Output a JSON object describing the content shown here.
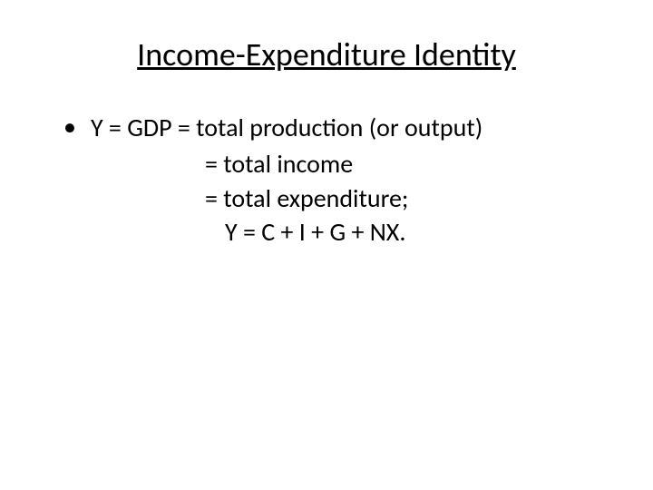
{
  "title": "Income-Expenditure Identity",
  "bullet_char": "•",
  "lines": {
    "l1": "Y = GDP = total production (or output)",
    "l2": "= total income",
    "l3": "= total expenditure;",
    "l4": "Y = C + I + G + NX."
  },
  "colors": {
    "background": "#ffffff",
    "text": "#000000"
  },
  "typography": {
    "title_fontsize": 36,
    "body_fontsize": 28,
    "font_family": "Calibri"
  }
}
